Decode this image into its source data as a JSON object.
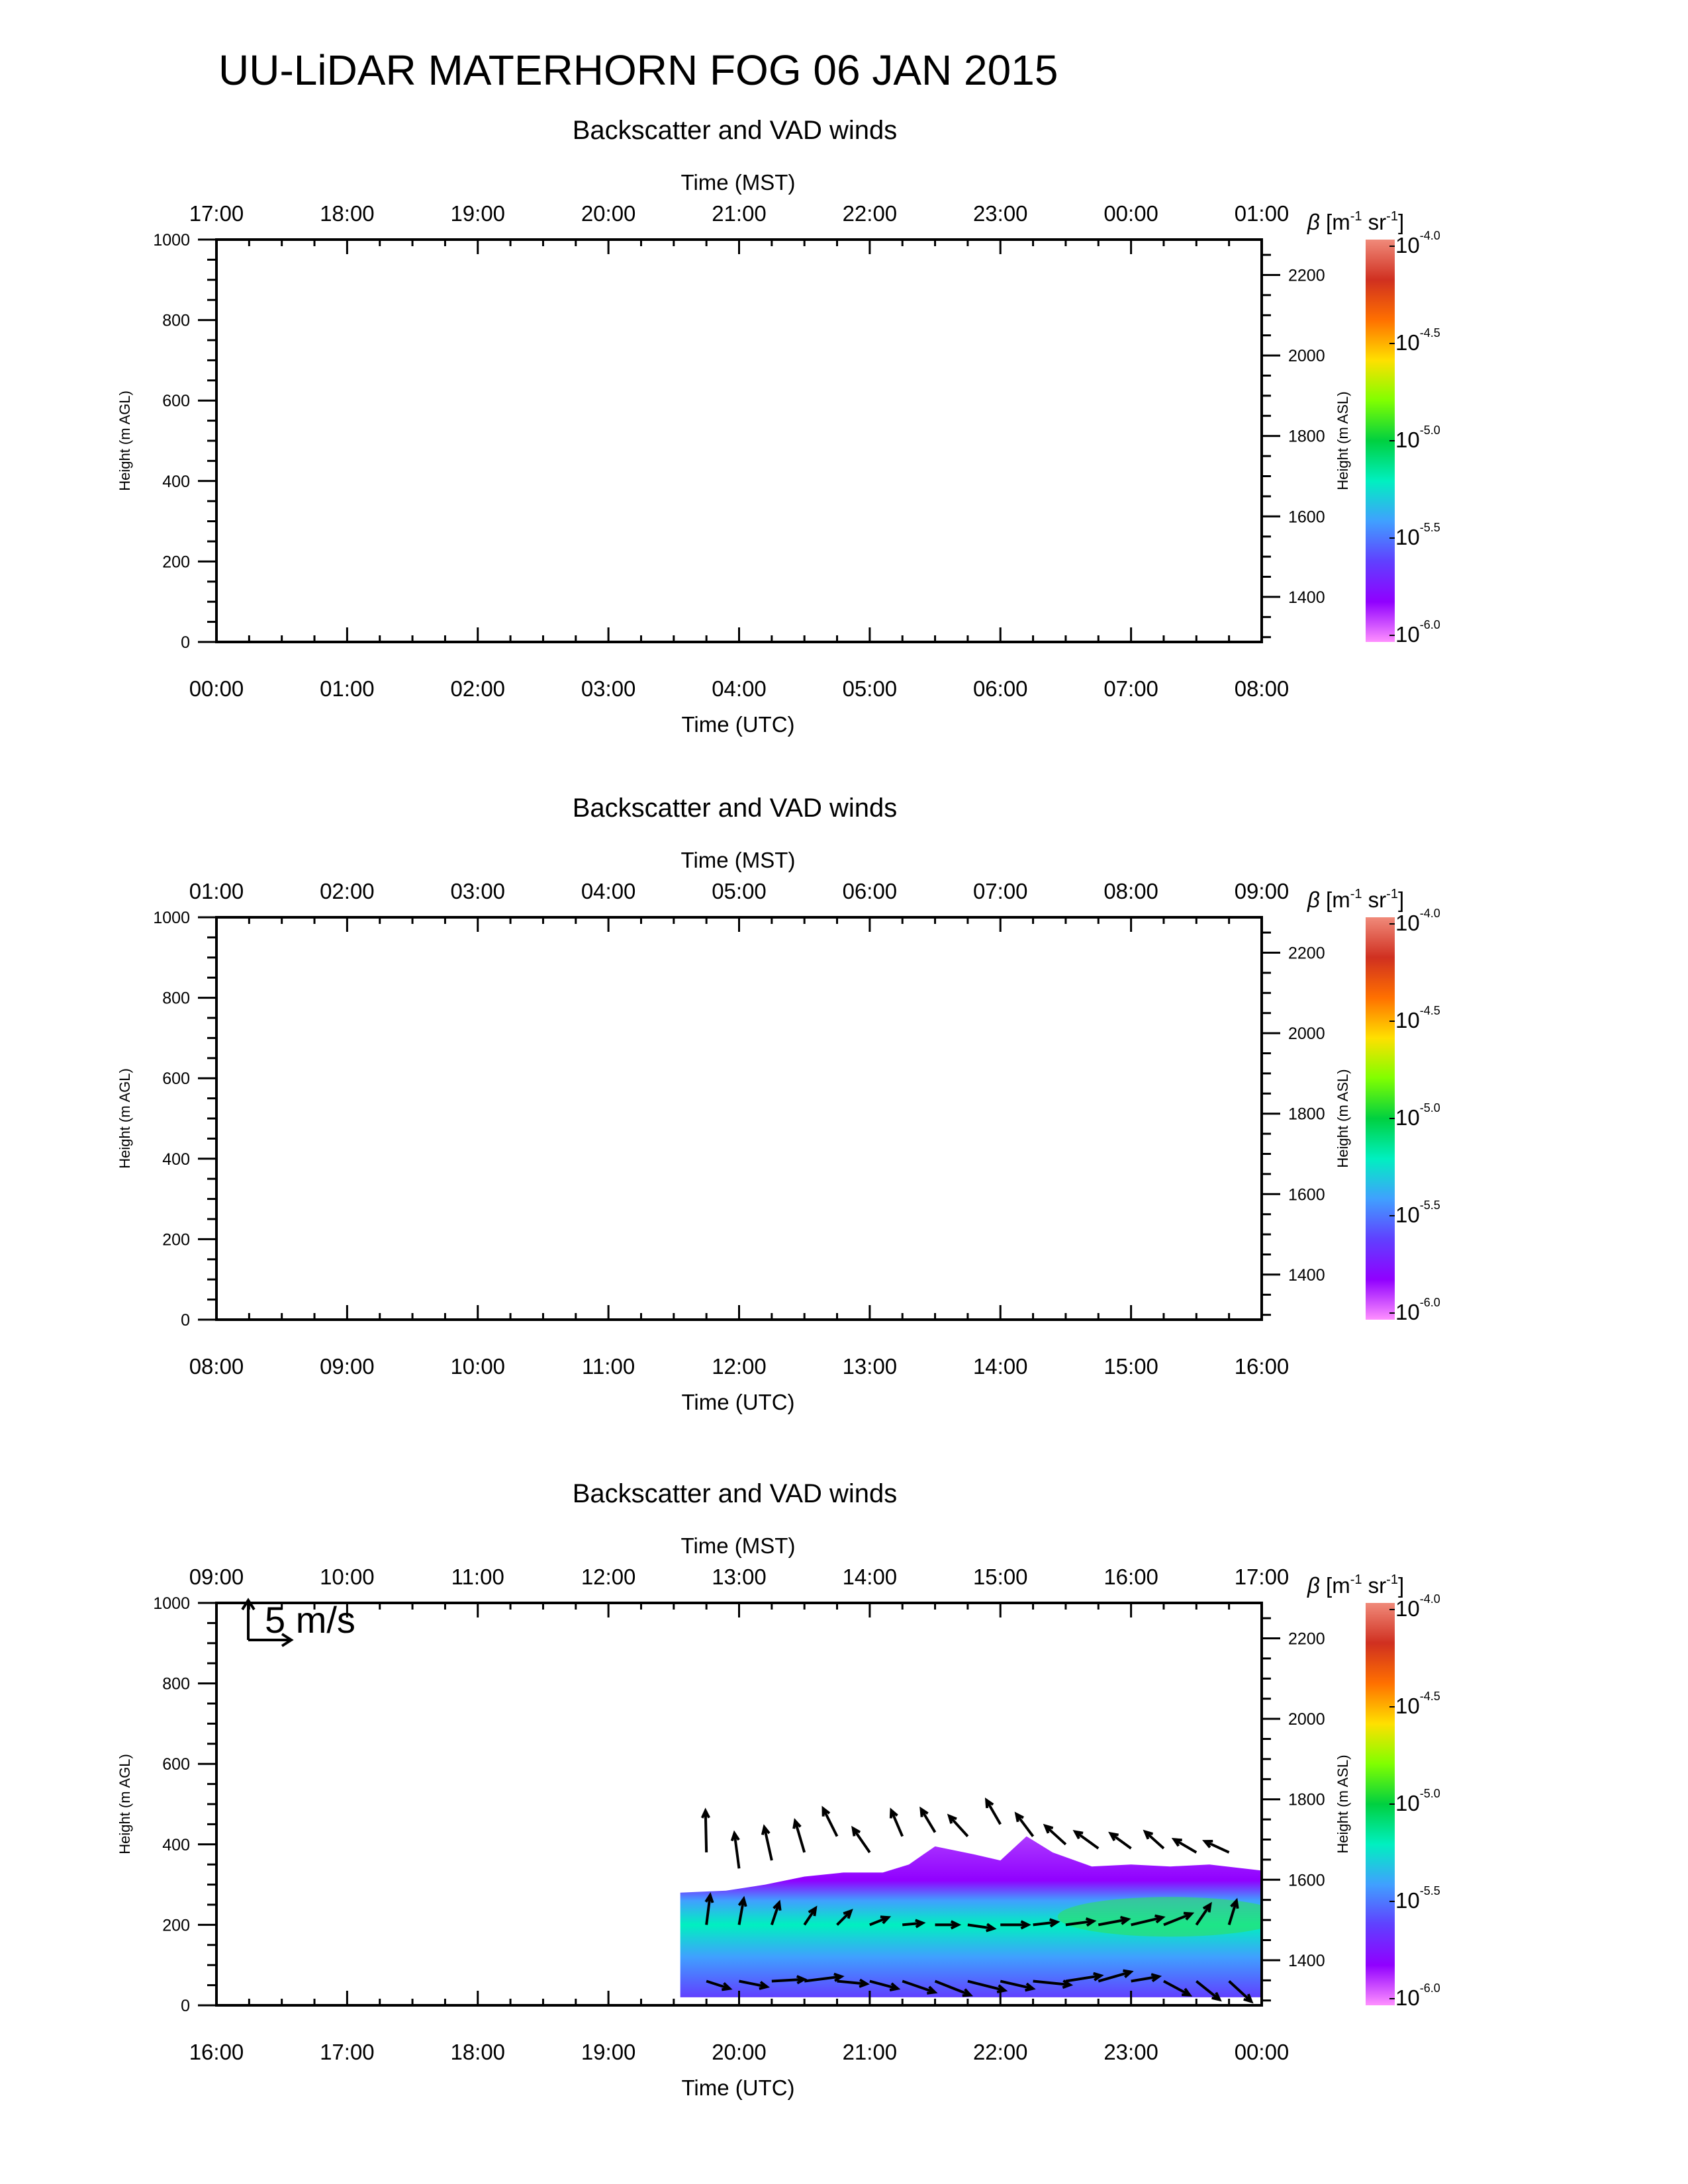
{
  "page_title": "UU-LiDAR MATERHORN FOG  06 JAN 2015",
  "colorbar": {
    "label_symbol": "β",
    "label_units": "[m",
    "label_exp1": "-1",
    "label_sr": " sr",
    "label_exp2": "-1",
    "label_close": "]",
    "tick_base": "10",
    "tick_exponents": [
      "-4.0",
      "-4.5",
      "-5.0",
      "-5.5",
      "-6.0"
    ],
    "colors_top_to_bottom": [
      "#f08a7a",
      "#d03020",
      "#ff7000",
      "#ffe000",
      "#80ff00",
      "#00d040",
      "#00f0c0",
      "#40a0ff",
      "#6040ff",
      "#9000ff",
      "#ff90ff"
    ]
  },
  "chart_data": [
    {
      "type": "heatmap",
      "title": "Backscatter and VAD winds",
      "xlabel_top": "Time (MST)",
      "xlabel_bottom": "Time (UTC)",
      "ylabel_left": "Height (m AGL)",
      "ylabel_right": "Height (m ASL)",
      "top_ticks": [
        "17:00",
        "18:00",
        "19:00",
        "20:00",
        "21:00",
        "22:00",
        "23:00",
        "00:00",
        "01:00"
      ],
      "bottom_ticks": [
        "00:00",
        "01:00",
        "02:00",
        "03:00",
        "04:00",
        "05:00",
        "06:00",
        "07:00",
        "08:00"
      ],
      "left_ticks": [
        "0",
        "200",
        "400",
        "600",
        "800",
        "1000"
      ],
      "right_ticks": [
        "1400",
        "1600",
        "1800",
        "2000",
        "2200"
      ],
      "ylim_agl": [
        0,
        1000
      ],
      "ylim_asl": [
        1288,
        2288
      ],
      "has_data": false
    },
    {
      "type": "heatmap",
      "title": "Backscatter and VAD winds",
      "xlabel_top": "Time (MST)",
      "xlabel_bottom": "Time (UTC)",
      "ylabel_left": "Height (m AGL)",
      "ylabel_right": "Height (m ASL)",
      "top_ticks": [
        "01:00",
        "02:00",
        "03:00",
        "04:00",
        "05:00",
        "06:00",
        "07:00",
        "08:00",
        "09:00"
      ],
      "bottom_ticks": [
        "08:00",
        "09:00",
        "10:00",
        "11:00",
        "12:00",
        "13:00",
        "14:00",
        "15:00",
        "16:00"
      ],
      "left_ticks": [
        "0",
        "200",
        "400",
        "600",
        "800",
        "1000"
      ],
      "right_ticks": [
        "1400",
        "1600",
        "1800",
        "2000",
        "2200"
      ],
      "ylim_agl": [
        0,
        1000
      ],
      "ylim_asl": [
        1288,
        2288
      ],
      "has_data": false
    },
    {
      "type": "heatmap",
      "title": "Backscatter and VAD winds",
      "xlabel_top": "Time (MST)",
      "xlabel_bottom": "Time (UTC)",
      "ylabel_left": "Height (m AGL)",
      "ylabel_right": "Height (m ASL)",
      "top_ticks": [
        "09:00",
        "10:00",
        "11:00",
        "12:00",
        "13:00",
        "14:00",
        "15:00",
        "16:00",
        "17:00"
      ],
      "bottom_ticks": [
        "16:00",
        "17:00",
        "18:00",
        "19:00",
        "20:00",
        "21:00",
        "22:00",
        "23:00",
        "00:00"
      ],
      "left_ticks": [
        "0",
        "200",
        "400",
        "600",
        "800",
        "1000"
      ],
      "right_ticks": [
        "1400",
        "1600",
        "1800",
        "2000",
        "2200"
      ],
      "ylim_agl": [
        0,
        1000
      ],
      "ylim_asl": [
        1288,
        2288
      ],
      "has_data": true,
      "wind_scale_label": "5 m/s",
      "data_start_hour_utc": 19.55,
      "data_end_hour_utc": 24.0,
      "layer_top_agl": [
        [
          19.55,
          280
        ],
        [
          19.9,
          285
        ],
        [
          20.2,
          300
        ],
        [
          20.5,
          320
        ],
        [
          20.8,
          330
        ],
        [
          21.1,
          330
        ],
        [
          21.3,
          350
        ],
        [
          21.5,
          395
        ],
        [
          21.8,
          375
        ],
        [
          22.0,
          360
        ],
        [
          22.2,
          420
        ],
        [
          22.4,
          380
        ],
        [
          22.7,
          345
        ],
        [
          23.0,
          350
        ],
        [
          23.3,
          345
        ],
        [
          23.6,
          350
        ],
        [
          24.0,
          335
        ]
      ],
      "field_levels_agl": [
        {
          "height_agl": 20,
          "log10_beta": -5.5
        },
        {
          "height_agl": 120,
          "log10_beta": -5.35
        },
        {
          "height_agl": 200,
          "log10_beta": -5.25
        },
        {
          "height_agl": 260,
          "log10_beta": -5.45
        },
        {
          "height_agl": 310,
          "log10_beta": -5.85
        }
      ],
      "wind_vectors": [
        {
          "t": 19.75,
          "z": 380,
          "u": -0.1,
          "v": 4.5
        },
        {
          "t": 19.75,
          "z": 200,
          "u": 0.4,
          "v": 3.2
        },
        {
          "t": 19.75,
          "z": 60,
          "u": 2.5,
          "v": -0.8
        },
        {
          "t": 20.0,
          "z": 340,
          "u": -0.5,
          "v": 3.8
        },
        {
          "t": 20.0,
          "z": 200,
          "u": 0.5,
          "v": 2.8
        },
        {
          "t": 20.0,
          "z": 60,
          "u": 3.0,
          "v": -0.6
        },
        {
          "t": 20.25,
          "z": 360,
          "u": -0.8,
          "v": 3.6
        },
        {
          "t": 20.25,
          "z": 200,
          "u": 0.8,
          "v": 2.4
        },
        {
          "t": 20.25,
          "z": 60,
          "u": 3.5,
          "v": 0.2
        },
        {
          "t": 20.5,
          "z": 380,
          "u": -1.0,
          "v": 3.4
        },
        {
          "t": 20.5,
          "z": 200,
          "u": 1.2,
          "v": 1.8
        },
        {
          "t": 20.5,
          "z": 60,
          "u": 4.0,
          "v": 0.5
        },
        {
          "t": 20.75,
          "z": 420,
          "u": -1.5,
          "v": 3.0
        },
        {
          "t": 20.75,
          "z": 200,
          "u": 1.5,
          "v": 1.5
        },
        {
          "t": 20.75,
          "z": 60,
          "u": 3.2,
          "v": -0.3
        },
        {
          "t": 21.0,
          "z": 380,
          "u": -1.8,
          "v": 2.6
        },
        {
          "t": 21.0,
          "z": 200,
          "u": 2.0,
          "v": 0.8
        },
        {
          "t": 21.0,
          "z": 60,
          "u": 3.0,
          "v": -0.8
        },
        {
          "t": 21.25,
          "z": 420,
          "u": -1.2,
          "v": 2.8
        },
        {
          "t": 21.25,
          "z": 200,
          "u": 2.2,
          "v": 0.2
        },
        {
          "t": 21.25,
          "z": 60,
          "u": 3.5,
          "v": -1.2
        },
        {
          "t": 21.5,
          "z": 430,
          "u": -1.5,
          "v": 2.5
        },
        {
          "t": 21.5,
          "z": 200,
          "u": 2.5,
          "v": 0.0
        },
        {
          "t": 21.5,
          "z": 60,
          "u": 3.8,
          "v": -1.5
        },
        {
          "t": 21.75,
          "z": 420,
          "u": -2.0,
          "v": 2.2
        },
        {
          "t": 21.75,
          "z": 200,
          "u": 2.8,
          "v": -0.4
        },
        {
          "t": 21.75,
          "z": 60,
          "u": 4.0,
          "v": -1.0
        },
        {
          "t": 22.0,
          "z": 450,
          "u": -1.5,
          "v": 2.6
        },
        {
          "t": 22.0,
          "z": 200,
          "u": 3.0,
          "v": 0.0
        },
        {
          "t": 22.0,
          "z": 60,
          "u": 3.5,
          "v": -0.8
        },
        {
          "t": 22.25,
          "z": 420,
          "u": -1.8,
          "v": 2.4
        },
        {
          "t": 22.25,
          "z": 200,
          "u": 2.6,
          "v": 0.3
        },
        {
          "t": 22.25,
          "z": 60,
          "u": 4.0,
          "v": -0.4
        },
        {
          "t": 22.5,
          "z": 400,
          "u": -2.2,
          "v": 2.0
        },
        {
          "t": 22.5,
          "z": 200,
          "u": 3.0,
          "v": 0.4
        },
        {
          "t": 22.5,
          "z": 60,
          "u": 3.8,
          "v": 0.6
        },
        {
          "t": 22.75,
          "z": 390,
          "u": -2.5,
          "v": 1.8
        },
        {
          "t": 22.75,
          "z": 200,
          "u": 3.2,
          "v": 0.6
        },
        {
          "t": 22.75,
          "z": 60,
          "u": 3.5,
          "v": 1.0
        },
        {
          "t": 23.0,
          "z": 390,
          "u": -2.2,
          "v": 1.6
        },
        {
          "t": 23.0,
          "z": 200,
          "u": 3.4,
          "v": 0.8
        },
        {
          "t": 23.0,
          "z": 60,
          "u": 3.0,
          "v": 0.5
        },
        {
          "t": 23.25,
          "z": 390,
          "u": -2.0,
          "v": 1.8
        },
        {
          "t": 23.25,
          "z": 200,
          "u": 3.0,
          "v": 1.2
        },
        {
          "t": 23.25,
          "z": 60,
          "u": 2.8,
          "v": -1.5
        },
        {
          "t": 23.5,
          "z": 380,
          "u": -2.4,
          "v": 1.4
        },
        {
          "t": 23.5,
          "z": 200,
          "u": 1.5,
          "v": 2.2
        },
        {
          "t": 23.5,
          "z": 60,
          "u": 2.5,
          "v": -2.0
        },
        {
          "t": 23.75,
          "z": 380,
          "u": -2.6,
          "v": 1.2
        },
        {
          "t": 23.75,
          "z": 200,
          "u": 0.8,
          "v": 2.6
        },
        {
          "t": 23.75,
          "z": 60,
          "u": 2.4,
          "v": -2.2
        }
      ]
    }
  ]
}
